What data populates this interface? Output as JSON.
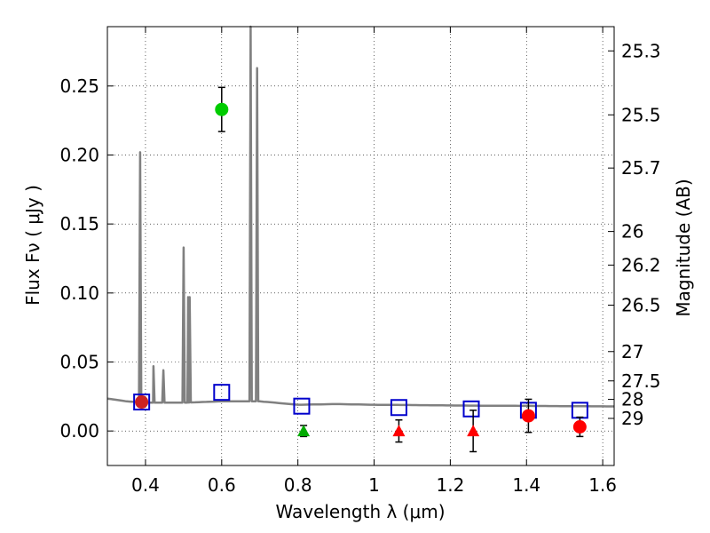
{
  "chart_data": {
    "type": "scatter",
    "xlabel": "Wavelength  λ (μm)",
    "ylabel": "Flux  Fν  ( μJy )",
    "y2label": "Magnitude (AB)",
    "xlim": [
      0.3,
      1.63
    ],
    "ylim": [
      -0.025,
      0.293
    ],
    "grid": true,
    "x_ticks": [
      0.4,
      0.6,
      0.8,
      1.0,
      1.2,
      1.4,
      1.6
    ],
    "x_tick_labels": [
      "0.4",
      "0.6",
      "0.8",
      "1",
      "1.2",
      "1.4",
      "1.6"
    ],
    "y_ticks": [
      0.0,
      0.05,
      0.1,
      0.15,
      0.2,
      0.25
    ],
    "y_tick_labels": [
      "0.00",
      "0.05",
      "0.10",
      "0.15",
      "0.20",
      "0.25"
    ],
    "mag_ticks": [
      25.3,
      25.5,
      25.7,
      26,
      26.2,
      26.5,
      27,
      27.5,
      28,
      29
    ],
    "mag_tick_labels": [
      "25.3",
      "25.5",
      "25.7",
      "26",
      "26.2",
      "26.5",
      "27",
      "27.5",
      "28",
      "29"
    ],
    "model_color": "#808080",
    "model_continuum": [
      [
        0.3,
        0.0235
      ],
      [
        0.35,
        0.0215
      ],
      [
        0.4,
        0.0205
      ],
      [
        0.5,
        0.0205
      ],
      [
        0.6,
        0.0215
      ],
      [
        0.7,
        0.0215
      ],
      [
        0.8,
        0.019
      ],
      [
        0.9,
        0.0195
      ],
      [
        1.0,
        0.019
      ],
      [
        1.1,
        0.0188
      ],
      [
        1.2,
        0.0185
      ],
      [
        1.3,
        0.0183
      ],
      [
        1.4,
        0.0182
      ],
      [
        1.5,
        0.018
      ],
      [
        1.63,
        0.0178
      ]
    ],
    "model_emission_lines": [
      {
        "x": 0.386,
        "peak": 0.202
      },
      {
        "x": 0.421,
        "peak": 0.047
      },
      {
        "x": 0.447,
        "peak": 0.044
      },
      {
        "x": 0.5,
        "peak": 0.133
      },
      {
        "x": 0.512,
        "peak": 0.097
      },
      {
        "x": 0.516,
        "peak": 0.097
      },
      {
        "x": 0.676,
        "peak": 0.293
      },
      {
        "x": 0.693,
        "peak": 0.263
      }
    ],
    "series": [
      {
        "name": "model_photometry",
        "marker": "open-square",
        "color": "#0000cc",
        "points": [
          [
            0.39,
            0.021
          ],
          [
            0.6,
            0.028
          ],
          [
            0.81,
            0.018
          ],
          [
            1.065,
            0.017
          ],
          [
            1.255,
            0.016
          ],
          [
            1.405,
            0.015
          ],
          [
            1.54,
            0.015
          ]
        ]
      },
      {
        "name": "detection",
        "marker": "circle",
        "color": "#00cc00",
        "points": [
          [
            0.6,
            0.233,
            0.016
          ]
        ]
      },
      {
        "name": "detection_low",
        "marker": "circle",
        "color": "#ff0000",
        "points": [
          [
            1.405,
            0.011,
            0.012
          ],
          [
            1.54,
            0.003,
            0.007
          ]
        ]
      },
      {
        "name": "upper_limit_green",
        "marker": "triangle",
        "color": "#00aa00",
        "points": [
          [
            0.815,
            0.0,
            0.004
          ]
        ]
      },
      {
        "name": "upper_limit_red",
        "marker": "triangle",
        "color": "#ff0000",
        "points": [
          [
            1.065,
            0.0,
            0.008
          ],
          [
            1.26,
            0.0,
            0.015
          ]
        ]
      },
      {
        "name": "uv_point",
        "marker": "circle",
        "color": "#cc2222",
        "points": [
          [
            0.39,
            0.021
          ]
        ]
      }
    ]
  }
}
